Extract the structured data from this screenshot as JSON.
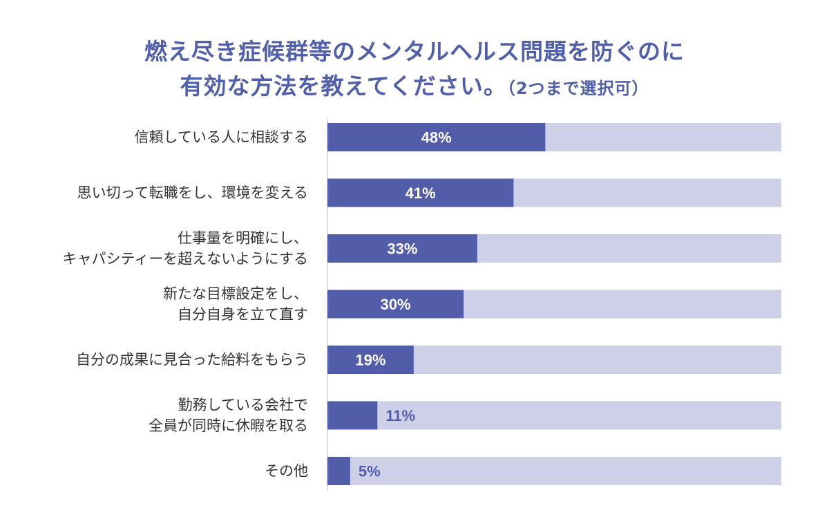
{
  "title": {
    "line1": "燃え尽き症候群等のメンタルヘルス問題を防ぐのに",
    "line2": "有効な方法を教えてください。",
    "note": "（2つまで選択可）"
  },
  "colors": {
    "bar": "#515da9",
    "track": "#cdd0e6",
    "title": "#4f5fab",
    "label_inside": "#ffffff",
    "label_outside": "#515da9"
  },
  "chart_data": {
    "type": "bar",
    "orientation": "horizontal",
    "xlim": [
      0,
      100
    ],
    "unit": "%",
    "grid": false,
    "legend": "none",
    "categories": [
      [
        "信頼している人に相談する"
      ],
      [
        "思い切って転職をし、環境を変える"
      ],
      [
        "仕事量を明確にし、",
        "キャパシティーを超えないようにする"
      ],
      [
        "新たな目標設定をし、",
        "自分自身を立て直す"
      ],
      [
        "自分の成果に見合った給料をもらう"
      ],
      [
        "勤務している会社で",
        "全員が同時に休暇を取る"
      ],
      [
        "その他"
      ]
    ],
    "values": [
      48,
      41,
      33,
      30,
      19,
      11,
      5
    ],
    "value_labels": [
      "48%",
      "41%",
      "33%",
      "30%",
      "19%",
      "11%",
      "5%"
    ]
  }
}
